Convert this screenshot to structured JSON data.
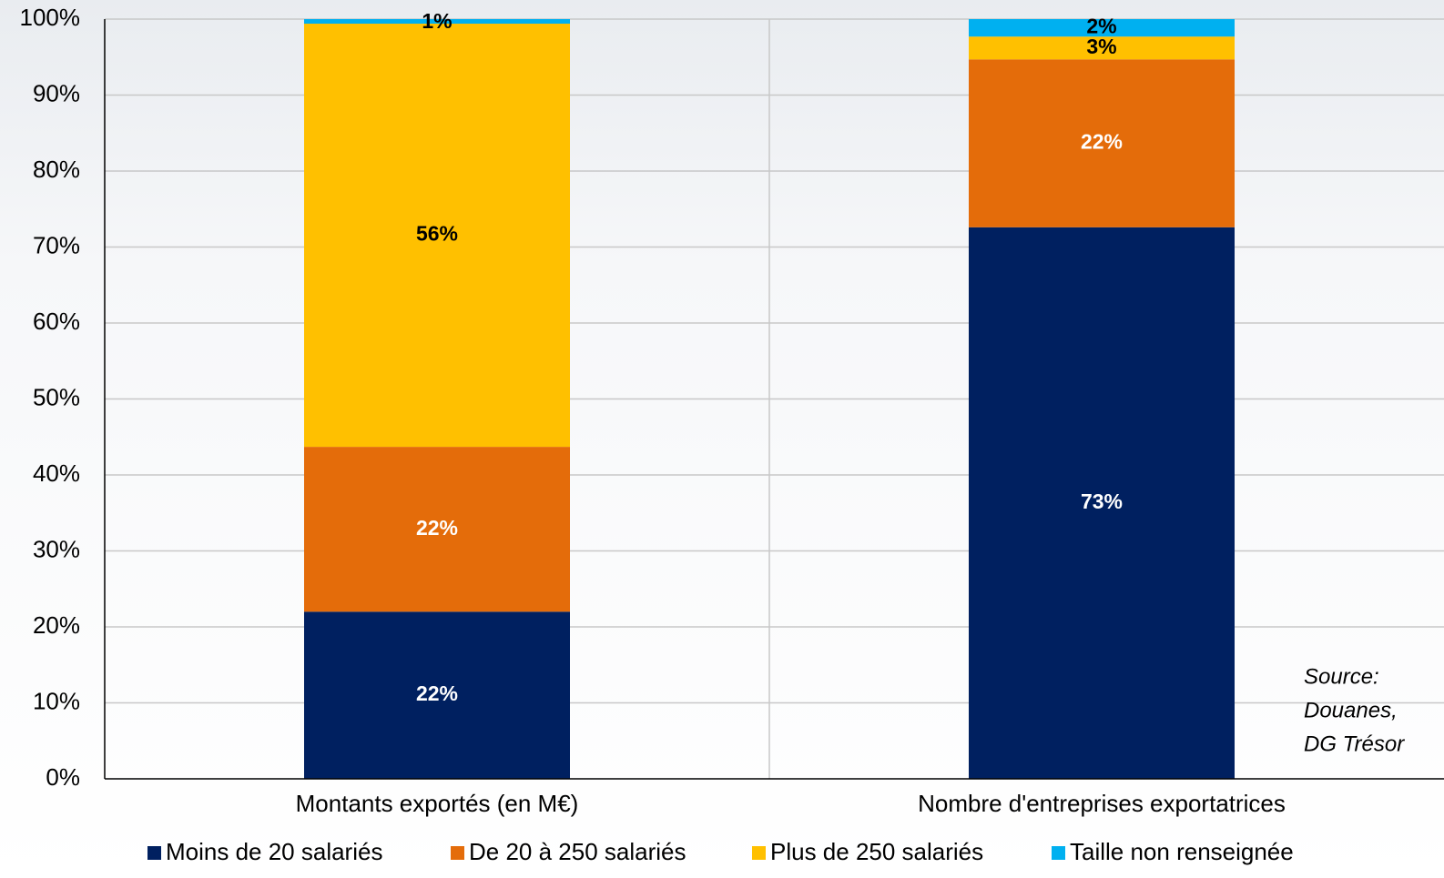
{
  "chart_data": {
    "type": "stacked_bar",
    "categories": [
      "Montants exportés (en M€)",
      "Nombre d'entreprises exportatrices"
    ],
    "series": [
      {
        "name": "Moins de 20 salariés",
        "color": "#002060",
        "label_color": "#ffffff",
        "values": [
          22.0,
          72.6
        ],
        "value_labels": [
          "22%",
          "73%"
        ]
      },
      {
        "name": "De 20 à 250 salariés",
        "color": "#e46c0a",
        "label_color": "#ffffff",
        "values": [
          21.7,
          22.1
        ],
        "value_labels": [
          "22%",
          "22%"
        ]
      },
      {
        "name": "Plus de 250 salariés",
        "color": "#ffc000",
        "label_color": "#000000",
        "values": [
          55.7,
          3.0
        ],
        "value_labels": [
          "56%",
          "3%"
        ]
      },
      {
        "name": "Taille non renseignée",
        "color": "#00b0f0",
        "label_color": "#000000",
        "values": [
          0.6,
          2.3
        ],
        "value_labels": [
          "1%",
          "2%"
        ]
      }
    ],
    "ylim": [
      0,
      100
    ],
    "yticks": [
      {
        "value": 0,
        "label": "0%"
      },
      {
        "value": 10,
        "label": "10%"
      },
      {
        "value": 20,
        "label": "20%"
      },
      {
        "value": 30,
        "label": "30%"
      },
      {
        "value": 40,
        "label": "40%"
      },
      {
        "value": 50,
        "label": "50%"
      },
      {
        "value": 60,
        "label": "60%"
      },
      {
        "value": 70,
        "label": "70%"
      },
      {
        "value": 80,
        "label": "80%"
      },
      {
        "value": 90,
        "label": "90%"
      },
      {
        "value": 100,
        "label": "100%"
      }
    ],
    "grid": true,
    "legend": "bottom",
    "annotation": [
      "Source:",
      "Douanes,",
      "DG Trésor"
    ]
  }
}
